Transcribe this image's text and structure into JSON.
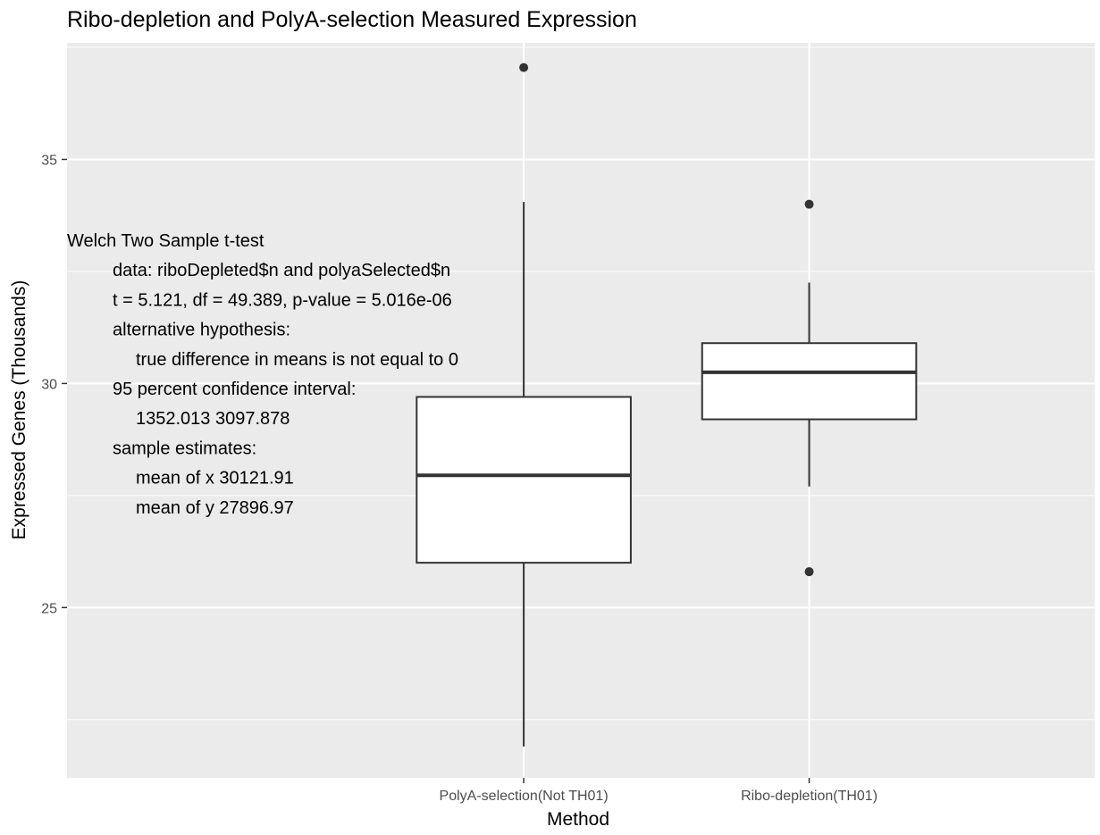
{
  "chart_data": {
    "type": "box",
    "title": "Ribo-depletion and PolyA-selection Measured Expression",
    "xlabel": "Method",
    "ylabel": "Expressed Genes (Thousands)",
    "ylim": [
      21.2,
      37.6
    ],
    "y_ticks": [
      25,
      30,
      35
    ],
    "y_minor_ticks": [
      22.5,
      27.5,
      32.5,
      37.5
    ],
    "grid": true,
    "categories": [
      "PolyA-selection(Not TH01)",
      "Ribo-depletion(TH01)"
    ],
    "boxes": [
      {
        "category": "PolyA-selection(Not TH01)",
        "whisker_low": 21.9,
        "q1": 26.0,
        "median": 27.95,
        "q3": 29.7,
        "whisker_high": 34.05,
        "outliers": [
          37.05
        ]
      },
      {
        "category": "Ribo-depletion(TH01)",
        "whisker_low": 27.7,
        "q1": 29.2,
        "median": 30.25,
        "q3": 30.9,
        "whisker_high": 32.25,
        "outliers": [
          34.0,
          25.8
        ]
      }
    ],
    "annotation": [
      {
        "text": "Welch Two Sample t-test",
        "indent": 0
      },
      {
        "text": "data:  riboDepleted$n and polyaSelected$n",
        "indent": 1
      },
      {
        "text": "t = 5.121, df = 49.389, p-value = 5.016e-06",
        "indent": 1
      },
      {
        "text": "alternative hypothesis:",
        "indent": 1
      },
      {
        "text": "true difference in means is not equal to 0",
        "indent": 2
      },
      {
        "text": "95 percent confidence interval:",
        "indent": 1
      },
      {
        "text": "1352.013 3097.878",
        "indent": 2
      },
      {
        "text": "sample estimates:",
        "indent": 1
      },
      {
        "text": "mean of x 30121.91",
        "indent": 2
      },
      {
        "text": "mean of y 27896.97",
        "indent": 2
      }
    ],
    "colors": {
      "panel": "#ebebeb",
      "grid": "#ffffff",
      "box_fill": "#ffffff",
      "box_stroke": "#333333",
      "outlier": "#333333"
    }
  }
}
